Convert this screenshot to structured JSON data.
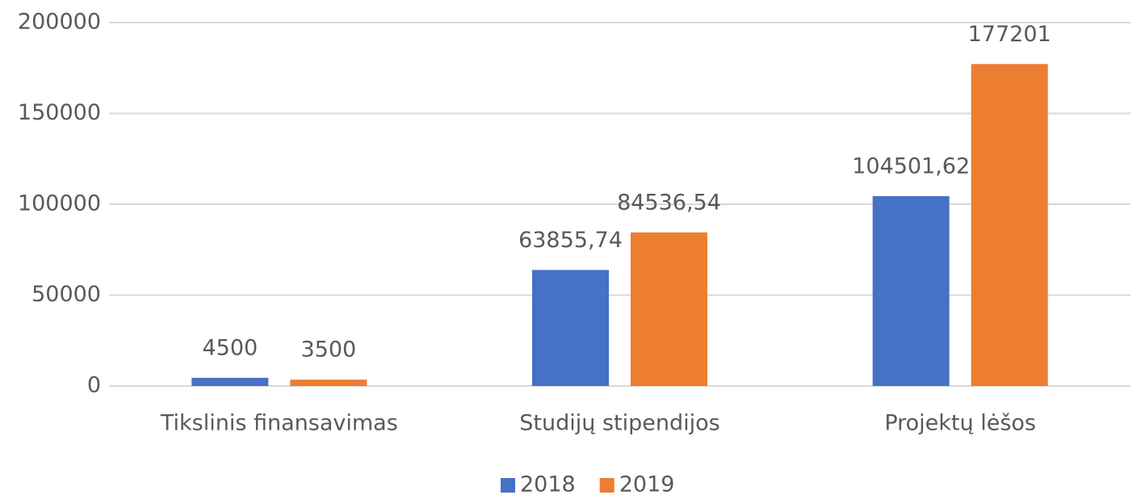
{
  "chart_data": {
    "type": "bar",
    "categories": [
      "Tikslinis finansavimas",
      "Studijų stipendijos",
      "Projektų lėšos"
    ],
    "series": [
      {
        "name": "2018",
        "color": "#4472c4",
        "values": [
          4500,
          63855.74,
          104501.62
        ],
        "value_labels": [
          "4500",
          "63855,74",
          "104501,62"
        ]
      },
      {
        "name": "2019",
        "color": "#ed7d31",
        "values": [
          3500,
          84536.54,
          177201
        ],
        "value_labels": [
          "3500",
          "84536,54",
          "177201"
        ]
      }
    ],
    "ylim": [
      0,
      200000
    ],
    "yticks": [
      0,
      50000,
      100000,
      150000,
      200000
    ],
    "grid": true,
    "legend": "bottom"
  }
}
